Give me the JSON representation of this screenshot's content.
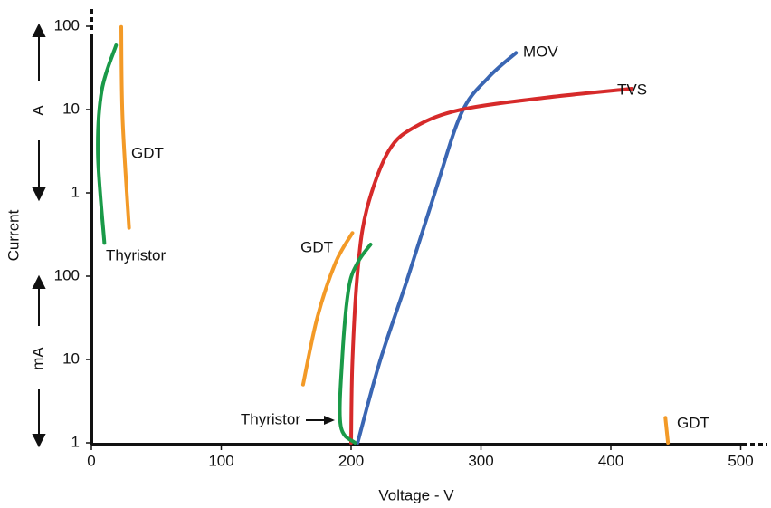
{
  "chart_data": {
    "type": "line",
    "x_label": "Voltage - V",
    "y_label": "Current",
    "y_unit_labels": [
      "A",
      "mA"
    ],
    "log_y": true,
    "xlim": [
      0,
      510
    ],
    "xticks": [
      0,
      100,
      200,
      300,
      400,
      500
    ],
    "ylim": [
      1,
      140000
    ],
    "yticks": [
      1,
      10,
      100,
      {
        "value": 1000,
        "label": "1"
      },
      {
        "value": 10000,
        "label": "10"
      },
      {
        "value": 100000,
        "label": "100"
      }
    ],
    "series": [
      {
        "name": "MOV",
        "color": "#3a66b3",
        "x": [
          205,
          222,
          243,
          264,
          285,
          306,
          327
        ],
        "values": [
          1,
          9.3,
          89,
          950,
          9100,
          24500,
          48000
        ]
      },
      {
        "name": "TVS",
        "color": "#d62a2a",
        "x": [
          200,
          201,
          205,
          212,
          229,
          250,
          285,
          348,
          416
        ],
        "values": [
          1,
          9.3,
          112,
          630,
          3200,
          6300,
          10000,
          13800,
          17800
        ]
      },
      {
        "name": "Thyristor",
        "color": "#1a9a48",
        "x": [
          10,
          5,
          8,
          19
        ],
        "values": [
          250,
          2950,
          17000,
          59000
        ]
      },
      {
        "name": "GDT",
        "color": "#f39a27",
        "x": [
          29,
          24,
          23
        ],
        "values": [
          380,
          7900,
          98000
        ]
      },
      {
        "name": "GDT",
        "color": "#f39a27",
        "x": [
          163,
          174,
          188,
          201
        ],
        "values": [
          5,
          32,
          145,
          330
        ]
      },
      {
        "name": "Thyristor",
        "color": "#1a9a48",
        "x": [
          203,
          192,
          193,
          198,
          205,
          215
        ],
        "values": [
          1,
          1.6,
          9.3,
          69,
          145,
          240
        ]
      },
      {
        "name": "GDT",
        "color": "#f39a27",
        "x": [
          444,
          442
        ],
        "values": [
          1,
          2
        ]
      }
    ]
  }
}
